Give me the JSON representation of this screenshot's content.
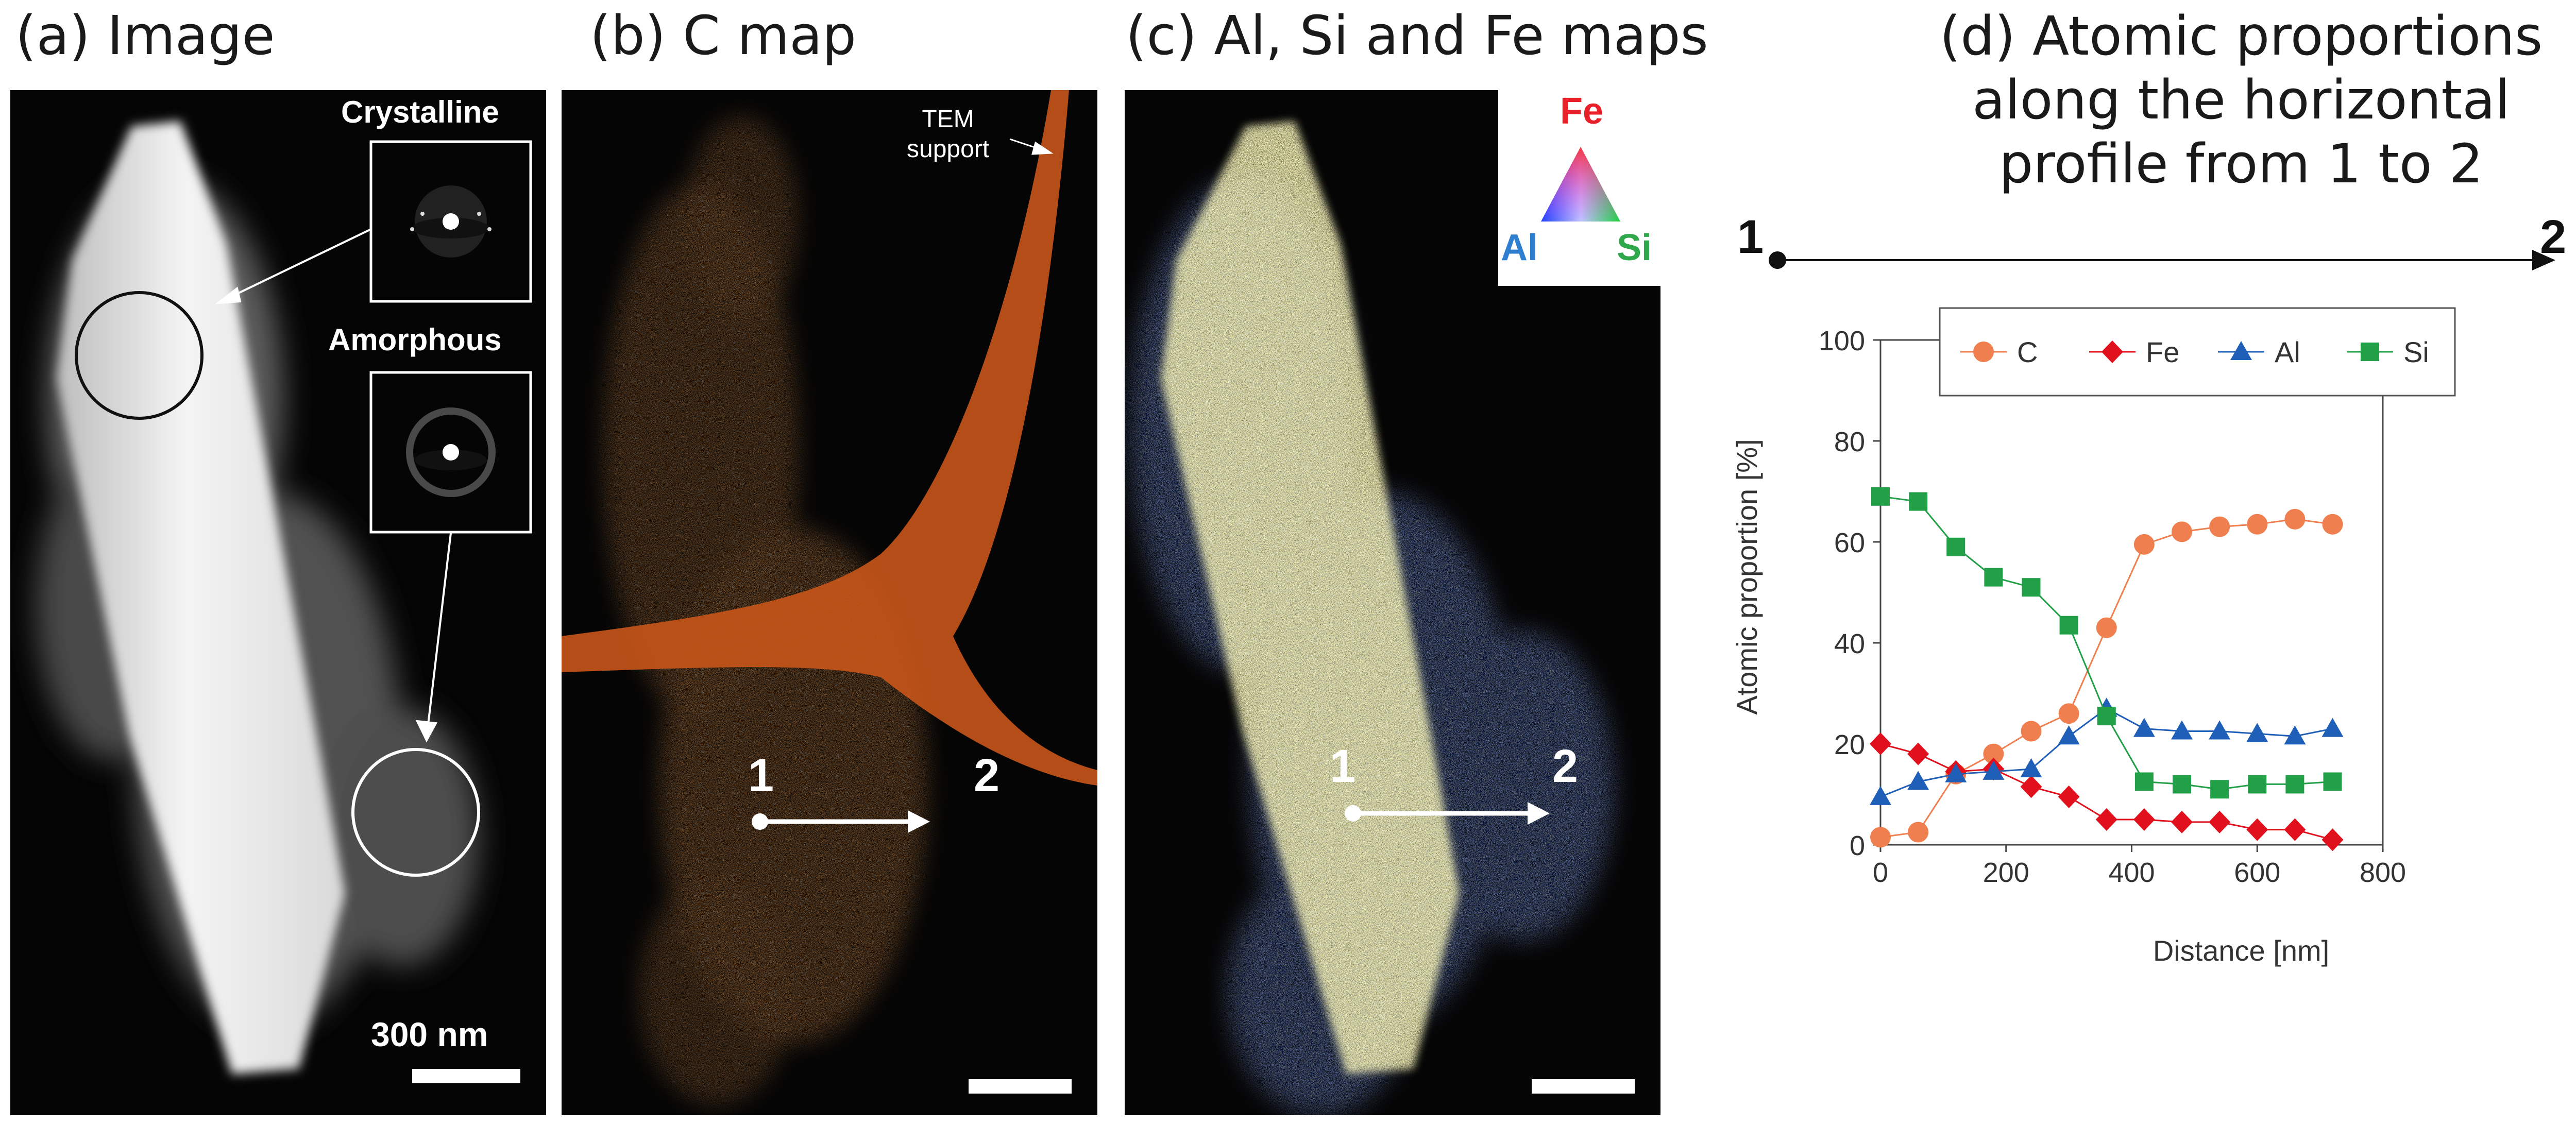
{
  "panels": {
    "a": {
      "title": "(a) Image",
      "crystalline_label": "Crystalline",
      "amorphous_label": "Amorphous",
      "scale_bar_label": "300 nm"
    },
    "b": {
      "title": "(b) C map",
      "support_label_line1": "TEM",
      "support_label_line2": "support",
      "point1": "1",
      "point2": "2"
    },
    "c": {
      "title": "(c) Al, Si and Fe maps",
      "legend_top": "Fe",
      "legend_left": "Al",
      "legend_right": "Si",
      "point1": "1",
      "point2": "2",
      "colors": {
        "Fe": "#e8202a",
        "Al": "#2f7fd0",
        "Si": "#2ea84a"
      }
    },
    "d": {
      "title_line1": "(d) Atomic proportions",
      "title_line2": "along the horizontal",
      "title_line3": "profile from 1 to 2",
      "profile_start": "1",
      "profile_end": "2"
    }
  },
  "chart_data": {
    "type": "line",
    "xlabel": "Distance [nm]",
    "ylabel": "Atomic proportion [%]",
    "xlim": [
      0,
      800
    ],
    "ylim": [
      0,
      100
    ],
    "xticks": [
      0,
      200,
      400,
      600,
      800
    ],
    "yticks": [
      0,
      20,
      40,
      60,
      80,
      100
    ],
    "grid": false,
    "legend_position": "top",
    "x": [
      0,
      60,
      120,
      180,
      240,
      300,
      360,
      420,
      480,
      540,
      600,
      660,
      720
    ],
    "series": [
      {
        "name": "C",
        "color": "#f07f50",
        "marker": "circle",
        "values": [
          1.5,
          2.5,
          14,
          18,
          22.5,
          26,
          43,
          59.5,
          62,
          63,
          63.5,
          64.5,
          63.5
        ]
      },
      {
        "name": "Fe",
        "color": "#e0101c",
        "marker": "diamond",
        "values": [
          20,
          18,
          14.5,
          15,
          11.5,
          9.5,
          5,
          5,
          4.5,
          4.5,
          3,
          3,
          1
        ]
      },
      {
        "name": "Al",
        "color": "#1f5fb8",
        "marker": "triangle",
        "values": [
          9.5,
          12.5,
          14,
          14.5,
          15,
          21.5,
          27,
          23,
          22.5,
          22.5,
          22,
          21.5,
          23
        ]
      },
      {
        "name": "Si",
        "color": "#22a048",
        "marker": "square",
        "values": [
          69,
          68,
          59,
          53,
          51,
          43.5,
          25.5,
          12.5,
          12,
          11,
          12,
          12,
          12.5
        ]
      }
    ]
  }
}
